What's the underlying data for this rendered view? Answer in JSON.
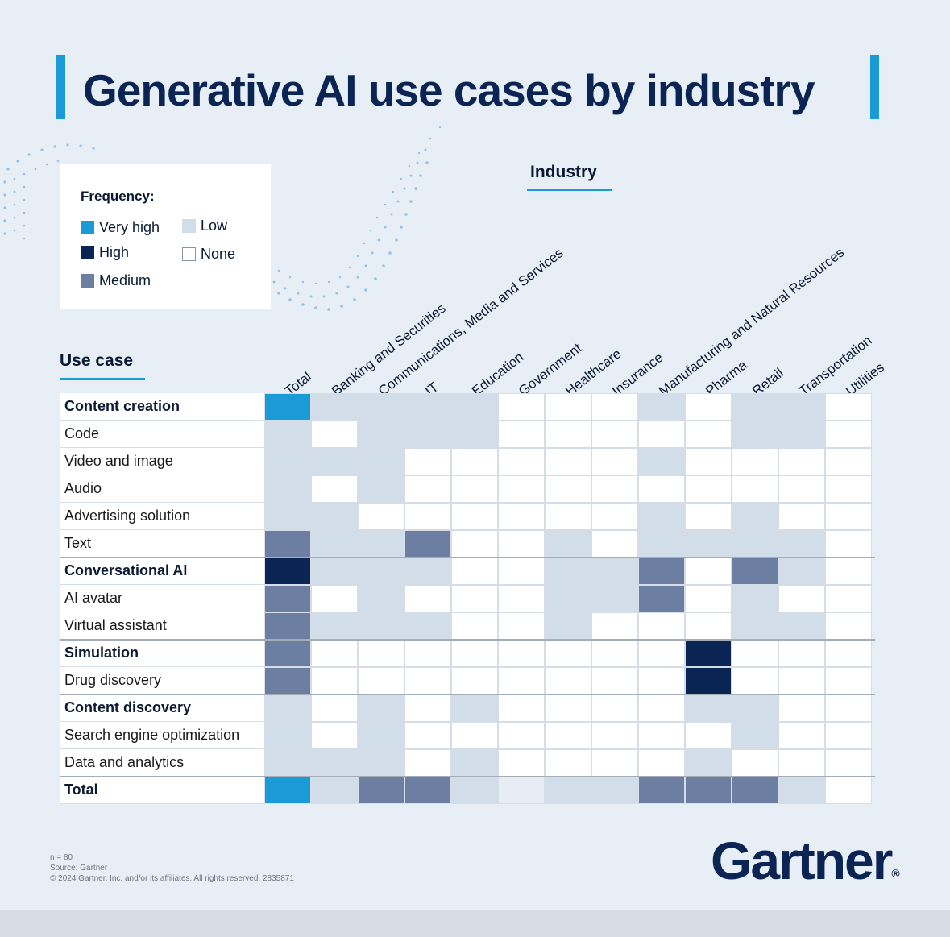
{
  "title": "Generative AI use cases by industry",
  "legend": {
    "title": "Frequency:",
    "items": [
      {
        "label": "Very high",
        "color": "#1a9bd7"
      },
      {
        "label": "High",
        "color": "#0a2454"
      },
      {
        "label": "Medium",
        "color": "#6c7fa3"
      },
      {
        "label": "Low",
        "color": "#d1dde8"
      },
      {
        "label": "None",
        "color": "#ffffff"
      }
    ]
  },
  "industry_title": "Industry",
  "usecase_title": "Use case",
  "chart_data": {
    "type": "heatmap",
    "title": "Generative AI use cases by industry",
    "xlabel": "Industry",
    "ylabel": "Use case",
    "columns": [
      "Total",
      "Banking and Securities",
      "Communications, Media and Services",
      "IT",
      "Education",
      "Government",
      "Healthcare",
      "Insurance",
      "Manufacturing and Natural Resources",
      "Pharma",
      "Retail",
      "Transportation",
      "Utilities"
    ],
    "rows": [
      {
        "label": "Content creation",
        "bold": true,
        "values": [
          "Very high",
          "Low",
          "Low",
          "Low",
          "Low",
          "None",
          "None",
          "None",
          "Low",
          "None",
          "Low",
          "Low",
          "None"
        ]
      },
      {
        "label": "Code",
        "bold": false,
        "values": [
          "Low",
          "None",
          "Low",
          "Low",
          "Low",
          "None",
          "None",
          "None",
          "None",
          "None",
          "Low",
          "Low",
          "None"
        ]
      },
      {
        "label": "Video and image",
        "bold": false,
        "values": [
          "Low",
          "Low",
          "Low",
          "None",
          "None",
          "None",
          "None",
          "None",
          "Low",
          "None",
          "None",
          "None",
          "None"
        ]
      },
      {
        "label": "Audio",
        "bold": false,
        "values": [
          "Low",
          "None",
          "Low",
          "None",
          "None",
          "None",
          "None",
          "None",
          "None",
          "None",
          "None",
          "None",
          "None"
        ]
      },
      {
        "label": "Advertising solution",
        "bold": false,
        "values": [
          "Low",
          "Low",
          "None",
          "None",
          "None",
          "None",
          "None",
          "None",
          "Low",
          "None",
          "Low",
          "None",
          "None"
        ]
      },
      {
        "label": "Text",
        "bold": false,
        "values": [
          "Medium",
          "Low",
          "Low",
          "Medium",
          "None",
          "None",
          "Low",
          "None",
          "Low",
          "Low",
          "Low",
          "Low",
          "None"
        ]
      },
      {
        "label": "Conversational AI",
        "bold": true,
        "values": [
          "High",
          "Low",
          "Low",
          "Low",
          "None",
          "None",
          "Low",
          "Low",
          "Medium",
          "None",
          "Medium",
          "Low",
          "None"
        ]
      },
      {
        "label": "AI avatar",
        "bold": false,
        "values": [
          "Medium",
          "None",
          "Low",
          "None",
          "None",
          "None",
          "Low",
          "Low",
          "Medium",
          "None",
          "Low",
          "None",
          "None"
        ]
      },
      {
        "label": "Virtual assistant",
        "bold": false,
        "values": [
          "Medium",
          "Low",
          "Low",
          "Low",
          "None",
          "None",
          "Low",
          "None",
          "None",
          "None",
          "Low",
          "Low",
          "None"
        ]
      },
      {
        "label": "Simulation",
        "bold": true,
        "values": [
          "Medium",
          "None",
          "None",
          "None",
          "None",
          "None",
          "None",
          "None",
          "None",
          "High",
          "None",
          "None",
          "None"
        ]
      },
      {
        "label": "Drug discovery",
        "bold": false,
        "values": [
          "Medium",
          "None",
          "None",
          "None",
          "None",
          "None",
          "None",
          "None",
          "None",
          "High",
          "None",
          "None",
          "None"
        ]
      },
      {
        "label": "Content discovery",
        "bold": true,
        "values": [
          "Low",
          "None",
          "Low",
          "None",
          "Low",
          "None",
          "None",
          "None",
          "None",
          "Low",
          "Low",
          "None",
          "None"
        ]
      },
      {
        "label": "Search engine optimization",
        "bold": false,
        "values": [
          "Low",
          "None",
          "Low",
          "None",
          "None",
          "None",
          "None",
          "None",
          "None",
          "None",
          "Low",
          "None",
          "None"
        ]
      },
      {
        "label": "Data and analytics",
        "bold": false,
        "values": [
          "Low",
          "Low",
          "Low",
          "None",
          "Low",
          "None",
          "None",
          "None",
          "None",
          "Low",
          "None",
          "None",
          "None"
        ]
      },
      {
        "label": "Total",
        "bold": true,
        "values": [
          "Very high",
          "Low",
          "Medium",
          "Medium",
          "Low",
          "Very low",
          "Low",
          "Low",
          "Medium",
          "Medium",
          "Medium",
          "Low",
          "None"
        ]
      }
    ],
    "level_colors": {
      "Very high": "#1a9bd7",
      "High": "#0a2454",
      "Medium": "#6c7fa3",
      "Low": "#d1dde8",
      "Very low": "#e6edf4",
      "None": "#ffffff"
    }
  },
  "footnotes": [
    "n = 80",
    "Source: Gartner",
    "© 2024 Gartner, Inc. and/or its affiliates. All rights reserved. 2835871"
  ],
  "logo": {
    "text": "Gartner",
    "mark": "®"
  }
}
